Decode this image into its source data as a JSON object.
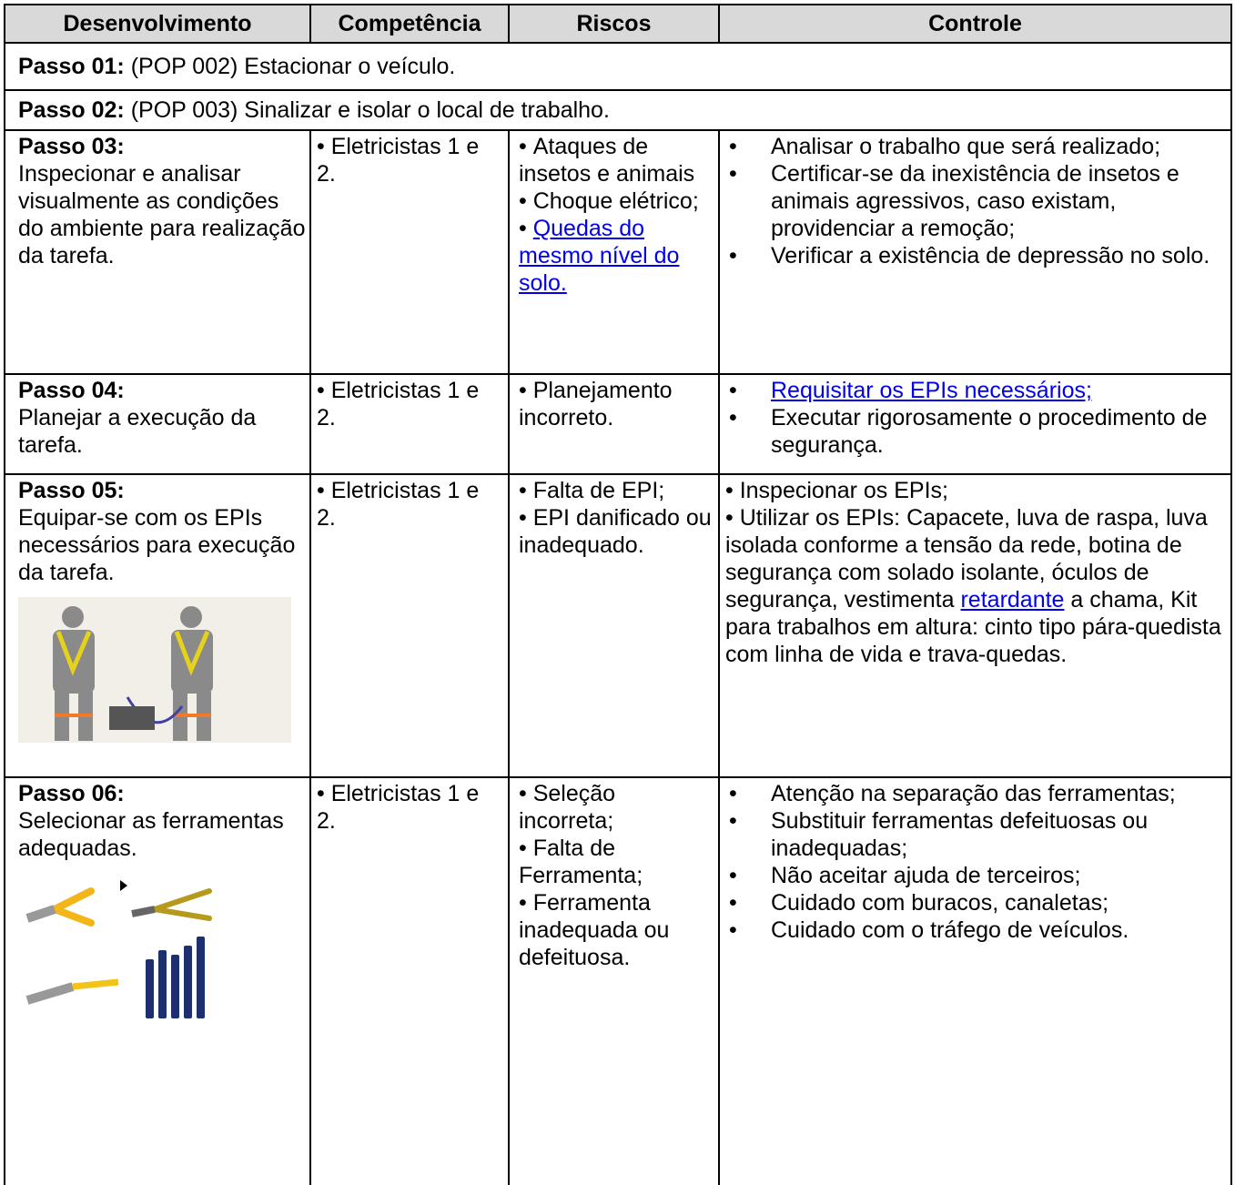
{
  "header": {
    "columns": [
      "Desenvolvimento",
      "Competência",
      "Riscos",
      "Controle"
    ]
  },
  "intro_steps": [
    {
      "label": "Passo 01:",
      "text": " (POP 002) Estacionar o veículo."
    },
    {
      "label": "Passo 02:",
      "text": " (POP 003) Sinalizar e isolar o local de trabalho."
    }
  ],
  "steps": [
    {
      "label": "Passo 03:",
      "description": "Inspecionar e analisar visualmente as condições do ambiente para realização da tarefa.",
      "competencia": [
        "Eletricistas 1 e 2."
      ],
      "riscos": [
        "Ataques de insetos e animais",
        "Choque elétrico;",
        "Quedas do mesmo nível do solo."
      ],
      "controle": [
        "Analisar o trabalho que será realizado;",
        "Certificar-se da inexistência de insetos e animais agressivos, caso existam, providenciar a remoção;",
        "Verificar a existência de depressão no solo."
      ]
    },
    {
      "label": "Passo 04:",
      "description": "Planejar a execução da tarefa.",
      "competencia": [
        "Eletricistas 1 e 2."
      ],
      "riscos": [
        "Planejamento incorreto."
      ],
      "controle": [
        "Requisitar os EPIs necessários;",
        "Executar rigorosamente o procedimento de segurança."
      ]
    },
    {
      "label": "Passo 05:",
      "description": "Equipar-se com os EPIs necessários para execução da tarefa.",
      "competencia": [
        "Eletricistas 1 e 2."
      ],
      "riscos": [
        "Falta de EPI;",
        "EPI danificado ou inadequado."
      ],
      "controle": [
        "Inspecionar os EPIs;",
        [
          "Utilizar os EPIs: Capacete, luva de raspa, luva isolada conforme a tensão da rede, botina de segurança com solado isolante, óculos de segurança, vestimenta ",
          "retardante",
          " a chama, Kit para trabalhos em altura: cinto tipo pára-quedista com linha de vida e trava-quedas."
        ]
      ]
    },
    {
      "label": "Passo 06:",
      "description": "Selecionar as ferramentas adequadas.",
      "competencia": [
        "Eletricistas 1 e 2."
      ],
      "riscos": [
        "Seleção incorreta;",
        "Falta de Ferramenta;",
        "Ferramenta inadequada ou defeituosa."
      ],
      "controle": [
        "Atenção na separação das ferramentas;",
        "Substituir ferramentas defeituosas ou inadequadas;",
        "Não aceitar ajuda de terceiros;",
        "Cuidado com buracos, canaletas;",
        "Cuidado com o tráfego de veículos."
      ]
    }
  ]
}
